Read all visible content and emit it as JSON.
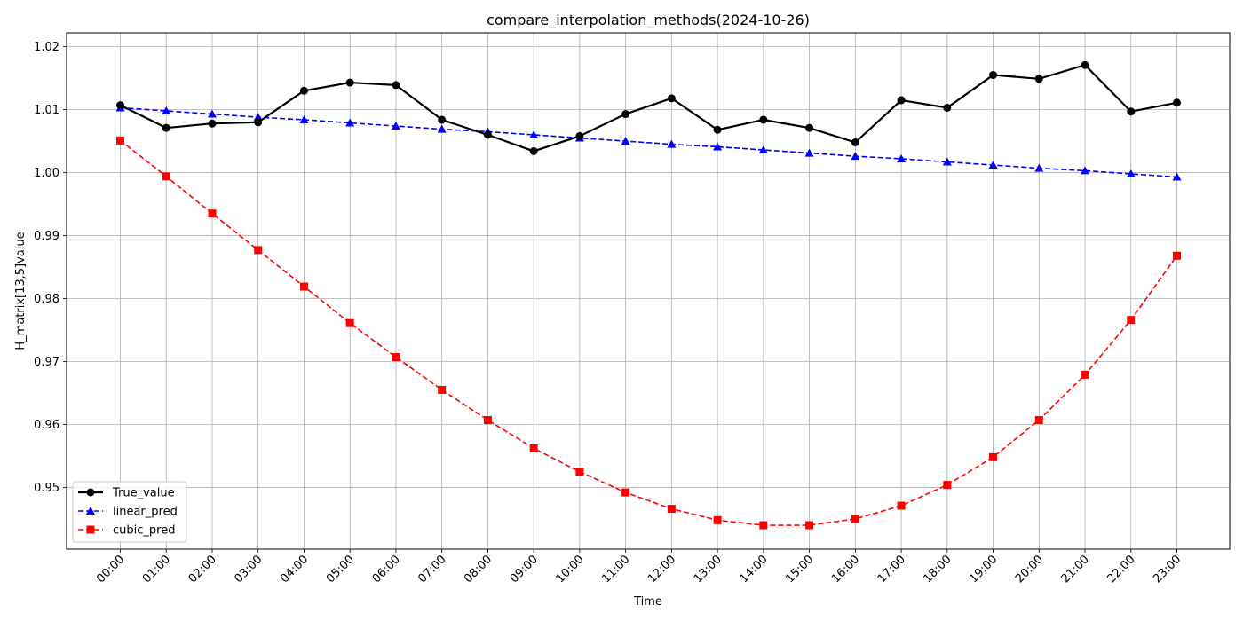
{
  "chart_data": {
    "type": "line",
    "title": "compare_interpolation_methods(2024-10-26)",
    "xlabel": "Time",
    "ylabel": "H_matrix[13,5]value",
    "categories": [
      "00:00",
      "01:00",
      "02:00",
      "03:00",
      "04:00",
      "05:00",
      "06:00",
      "07:00",
      "08:00",
      "09:00",
      "10:00",
      "11:00",
      "12:00",
      "13:00",
      "14:00",
      "15:00",
      "16:00",
      "17:00",
      "18:00",
      "19:00",
      "20:00",
      "21:00",
      "22:00",
      "23:00"
    ],
    "yticks": [
      "0.95",
      "0.96",
      "0.97",
      "0.98",
      "0.99",
      "1.00",
      "1.01",
      "1.02"
    ],
    "ylim": [
      0.9402,
      1.0222
    ],
    "grid": true,
    "legend_position": "lower-left",
    "series": [
      {
        "name": "True_value",
        "color": "#000000",
        "marker": "circle",
        "dash": "solid",
        "values": [
          1.0107,
          1.0071,
          1.0078,
          1.008,
          1.013,
          1.0143,
          1.0139,
          1.0084,
          1.006,
          1.0034,
          1.0058,
          1.0093,
          1.0118,
          1.0068,
          1.0084,
          1.0071,
          1.0048,
          1.0115,
          1.0103,
          1.0155,
          1.0149,
          1.0171,
          1.0097,
          1.0111
        ]
      },
      {
        "name": "linear_pred",
        "color": "#0000ff",
        "marker": "triangle",
        "dash": "dashed",
        "values": [
          1.0103,
          1.0098,
          1.0093,
          1.0088,
          1.0084,
          1.0079,
          1.0074,
          1.0069,
          1.0065,
          1.006,
          1.0055,
          1.005,
          1.0045,
          1.0041,
          1.0036,
          1.0031,
          1.0026,
          1.0022,
          1.0017,
          1.0012,
          1.0007,
          1.0003,
          0.9998,
          0.9993
        ]
      },
      {
        "name": "cubic_pred",
        "color": "#ff0000",
        "marker": "square",
        "dash": "dashed",
        "values": [
          1.0051,
          0.9994,
          0.9935,
          0.9877,
          0.9819,
          0.9761,
          0.9707,
          0.9655,
          0.9607,
          0.9562,
          0.9525,
          0.9492,
          0.9466,
          0.9448,
          0.944,
          0.944,
          0.945,
          0.9471,
          0.9504,
          0.9548,
          0.9607,
          0.9679,
          0.9766,
          0.9868
        ]
      }
    ]
  }
}
